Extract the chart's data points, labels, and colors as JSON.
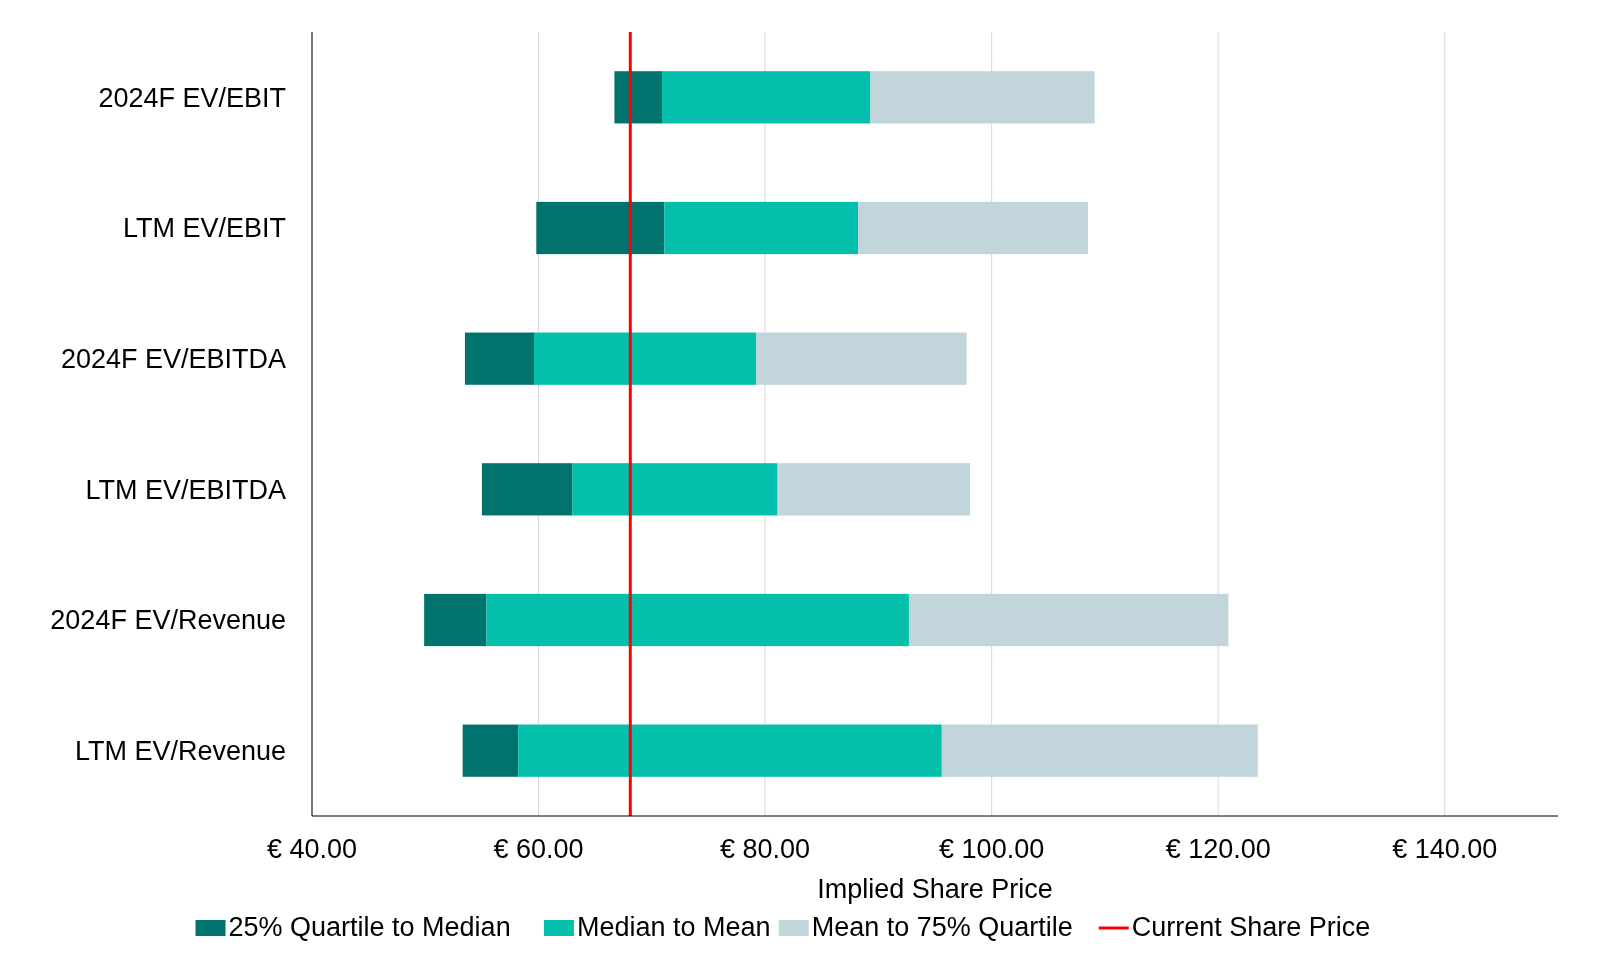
{
  "chart_data": {
    "type": "bar",
    "orientation": "horizontal",
    "xlabel": "Implied Share Price",
    "categories": [
      "2024F EV/EBIT",
      "LTM EV/EBIT",
      "2024F EV/EBITDA",
      "LTM EV/EBITDA",
      "2024F EV/Revenue",
      "LTM EV/Revenue"
    ],
    "series": [
      {
        "name": "25% Quartile to Median",
        "color": "#00736f",
        "base": [
          66.7,
          59.8,
          53.5,
          55.0,
          49.9,
          53.3
        ],
        "values": [
          4.2,
          11.3,
          6.1,
          8.0,
          5.5,
          4.9
        ]
      },
      {
        "name": "Median to Mean",
        "color": "#05bfad",
        "base": [
          70.9,
          71.1,
          59.6,
          63.0,
          55.4,
          58.2
        ],
        "values": [
          18.4,
          17.1,
          19.6,
          18.1,
          37.3,
          37.4
        ]
      },
      {
        "name": "Mean to 75% Quartile",
        "color": "#c1d5da",
        "base": [
          89.3,
          88.2,
          79.2,
          81.1,
          92.7,
          95.6
        ],
        "values": [
          19.8,
          20.3,
          18.6,
          17.0,
          28.2,
          27.9
        ]
      }
    ],
    "xlim": [
      40,
      150
    ],
    "xticks": [
      {
        "value": 40,
        "label": "€ 40.00"
      },
      {
        "value": 60,
        "label": "€ 60.00"
      },
      {
        "value": 80,
        "label": "€ 80.00"
      },
      {
        "value": 100,
        "label": "€ 100.00"
      },
      {
        "value": 120,
        "label": "€ 120.00"
      },
      {
        "value": 140,
        "label": "€ 140.00"
      }
    ],
    "ref_lines": [
      {
        "axis": "x",
        "value": 68.1,
        "label": "Current Share Price",
        "color": "#ff0000"
      }
    ],
    "grid": "x",
    "legend": "bottom"
  }
}
